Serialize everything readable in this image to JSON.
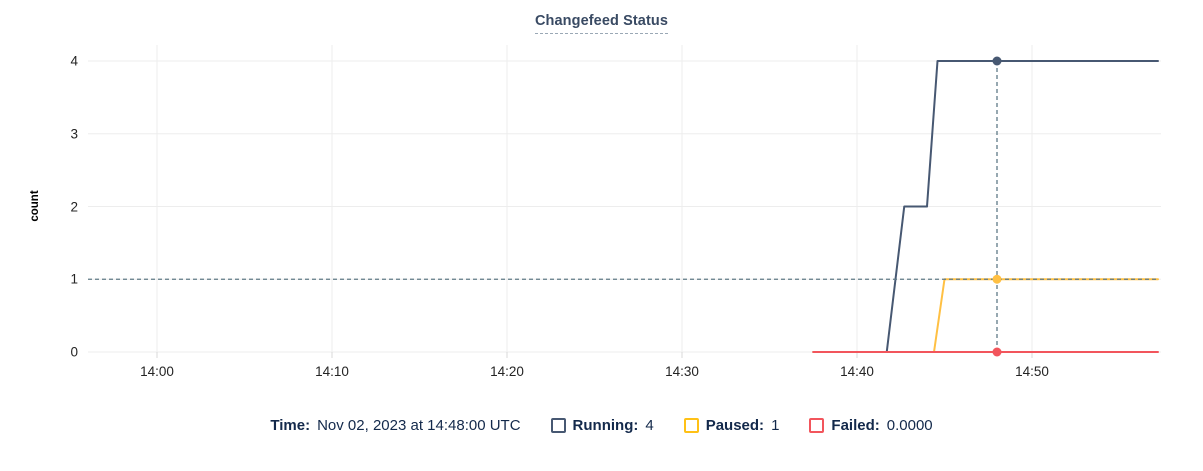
{
  "chart_data": {
    "type": "line",
    "title": "Changefeed Status",
    "xlabel": "",
    "ylabel": "count",
    "ylim": [
      0,
      4
    ],
    "yticks": [
      0,
      1,
      2,
      3,
      4
    ],
    "x_domain_minutes_after_1400": [
      -3.9,
      57.2
    ],
    "xticks": [
      {
        "m": 0,
        "label": "14:00"
      },
      {
        "m": 10,
        "label": "14:10"
      },
      {
        "m": 20,
        "label": "14:20"
      },
      {
        "m": 30,
        "label": "14:30"
      },
      {
        "m": 40,
        "label": "14:40"
      },
      {
        "m": 50,
        "label": "14:50"
      }
    ],
    "grid": true,
    "legend_position": "bottom",
    "series": [
      {
        "name": "Running",
        "color": "#475872",
        "points": [
          [
            37.5,
            0
          ],
          [
            41.7,
            0
          ],
          [
            42.7,
            2
          ],
          [
            44.0,
            2
          ],
          [
            44.6,
            4
          ],
          [
            57.2,
            4
          ]
        ]
      },
      {
        "name": "Paused",
        "color": "#ffc043",
        "points": [
          [
            37.5,
            0
          ],
          [
            44.4,
            0
          ],
          [
            45.0,
            1
          ],
          [
            57.2,
            1
          ]
        ]
      },
      {
        "name": "Failed",
        "color": "#f2555c",
        "points": [
          [
            37.5,
            0
          ],
          [
            57.2,
            0
          ]
        ]
      }
    ],
    "crosshair": {
      "minutes_after_1400": 48,
      "time_label": "Nov 02, 2023 at 14:48:00 UTC",
      "hline_value": 1,
      "dots": [
        {
          "series": "Running",
          "value": 4
        },
        {
          "series": "Paused",
          "value": 1
        },
        {
          "series": "Failed",
          "value": 0
        }
      ]
    }
  },
  "legend": {
    "time_label": "Time:",
    "time_value": "Nov 02, 2023 at 14:48:00 UTC",
    "items": [
      {
        "label": "Running:",
        "value": "4",
        "color": "#475872"
      },
      {
        "label": "Paused:",
        "value": "1",
        "color": "#ffc116"
      },
      {
        "label": "Failed:",
        "value": "0.0000",
        "color": "#f2555c"
      }
    ]
  },
  "colors": {
    "grid": "#ededed",
    "axis_tick": "#d8d8d8",
    "crosshair": "#5f7a87",
    "title_text": "#394a63",
    "legend_text": "#13294b",
    "tick_text": "#242424"
  }
}
